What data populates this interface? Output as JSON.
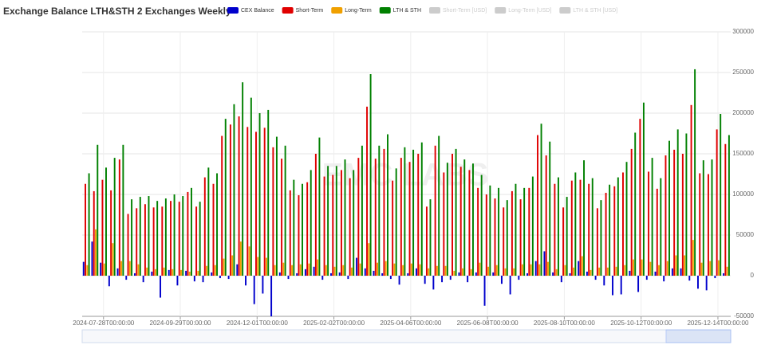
{
  "chart_data": {
    "type": "bar",
    "title": "Exchange Balance LTH&STH 2 Exchanges Weekly",
    "watermark": "EMC LABS",
    "categories": [
      null,
      null,
      "2024-07-28T00:00:00",
      null,
      null,
      null,
      null,
      null,
      null,
      null,
      null,
      "2024-09-29T00:00:00",
      null,
      null,
      null,
      null,
      null,
      null,
      null,
      null,
      "2024-12-01T00:00:00",
      null,
      null,
      null,
      null,
      null,
      null,
      null,
      null,
      "2025-02-02T00:00:00",
      null,
      null,
      null,
      null,
      null,
      null,
      null,
      null,
      "2025-04-06T00:00:00",
      null,
      null,
      null,
      null,
      null,
      null,
      null,
      null,
      "2025-06-08T00:00:00",
      null,
      null,
      null,
      null,
      null,
      null,
      null,
      null,
      "2025-08-10T00:00:00",
      null,
      null,
      null,
      null,
      null,
      null,
      null,
      null,
      "2025-10-12T00:00:00",
      null,
      null,
      null,
      null,
      null,
      null,
      null,
      null,
      "2025-12-14T00:00:00",
      null
    ],
    "series": [
      {
        "name": "CEX Balance",
        "color": "#0000cc",
        "values": [
          17000,
          42000,
          16000,
          -13000,
          9000,
          -5000,
          3000,
          -8000,
          5000,
          -27000,
          7000,
          -12000,
          6000,
          -7000,
          -8000,
          4000,
          -3000,
          -4000,
          14000,
          -12000,
          -35000,
          -22000,
          -50000,
          4000,
          -4000,
          3000,
          8000,
          11000,
          -5000,
          3000,
          4000,
          -4000,
          22000,
          9000,
          6000,
          3000,
          -4000,
          -11000,
          3000,
          9000,
          -10000,
          -17000,
          -8000,
          -5000,
          4000,
          -8000,
          4000,
          -37000,
          4000,
          -10000,
          -23000,
          -5000,
          3000,
          18000,
          30000,
          4000,
          -8000,
          3000,
          18000,
          5000,
          -5000,
          -12000,
          -24000,
          -23000,
          6000,
          -20000,
          -5000,
          5000,
          -7000,
          9000,
          9000,
          -6000,
          -16000,
          -18000,
          -3000,
          3000
        ]
      },
      {
        "name": "Short-Term",
        "color": "#e00000",
        "values": [
          113000,
          104000,
          118000,
          105000,
          143000,
          76000,
          83000,
          88000,
          84000,
          85000,
          92000,
          91000,
          103000,
          85000,
          121000,
          113000,
          172000,
          186000,
          196000,
          183000,
          177000,
          182000,
          158000,
          144000,
          105000,
          99000,
          115000,
          150000,
          122000,
          124000,
          130000,
          120000,
          145000,
          208000,
          144000,
          156000,
          117000,
          145000,
          140000,
          150000,
          85000,
          160000,
          127000,
          150000,
          134000,
          130000,
          108000,
          100000,
          95000,
          84000,
          104000,
          94000,
          108000,
          173000,
          148000,
          113000,
          84000,
          117000,
          118000,
          113000,
          83000,
          102000,
          110000,
          127000,
          156000,
          193000,
          128000,
          107000,
          148000,
          155000,
          150000,
          210000,
          126000,
          125000,
          180000,
          162000
        ]
      },
      {
        "name": "Long-Term",
        "color": "#f0a000",
        "values": [
          13000,
          57000,
          15000,
          40000,
          18000,
          18000,
          14000,
          10000,
          8000,
          10000,
          8000,
          7000,
          5000,
          6000,
          12000,
          13000,
          21000,
          25000,
          42000,
          36000,
          23000,
          22000,
          13000,
          16000,
          13000,
          14000,
          15000,
          20000,
          13000,
          11000,
          13000,
          10000,
          15000,
          40000,
          16000,
          18000,
          15000,
          13000,
          15000,
          14000,
          9000,
          12000,
          12000,
          6000,
          9000,
          8000,
          16000,
          11000,
          13000,
          9000,
          9000,
          14000,
          14000,
          14000,
          17000,
          8000,
          13000,
          10000,
          24000,
          7000,
          10000,
          10000,
          11000,
          13000,
          20000,
          20000,
          17000,
          13000,
          18000,
          25000,
          25000,
          44000,
          16000,
          18000,
          19000,
          11000
        ]
      },
      {
        "name": "LTH & STH",
        "color": "#008000",
        "values": [
          126000,
          161000,
          133000,
          145000,
          161000,
          94000,
          97000,
          98000,
          92000,
          95000,
          100000,
          98000,
          108000,
          91000,
          133000,
          126000,
          193000,
          211000,
          238000,
          219000,
          200000,
          204000,
          171000,
          160000,
          118000,
          113000,
          130000,
          170000,
          135000,
          135000,
          143000,
          130000,
          160000,
          248000,
          160000,
          174000,
          132000,
          158000,
          155000,
          164000,
          94000,
          172000,
          139000,
          156000,
          143000,
          138000,
          124000,
          111000,
          108000,
          93000,
          113000,
          108000,
          122000,
          187000,
          165000,
          121000,
          97000,
          127000,
          142000,
          120000,
          93000,
          112000,
          121000,
          140000,
          176000,
          213000,
          145000,
          120000,
          166000,
          180000,
          175000,
          254000,
          142000,
          143000,
          199000,
          173000
        ]
      }
    ],
    "legend_inactive": [
      "Short-Term [USD]",
      "Long-Term [USD]",
      "LTH & STH [USD]"
    ],
    "inactive_color": "#cccccc",
    "ylim": [
      -50000,
      300000
    ],
    "yticks": [
      -50000,
      0,
      50000,
      100000,
      150000,
      200000,
      250000,
      300000
    ],
    "grid": true
  }
}
